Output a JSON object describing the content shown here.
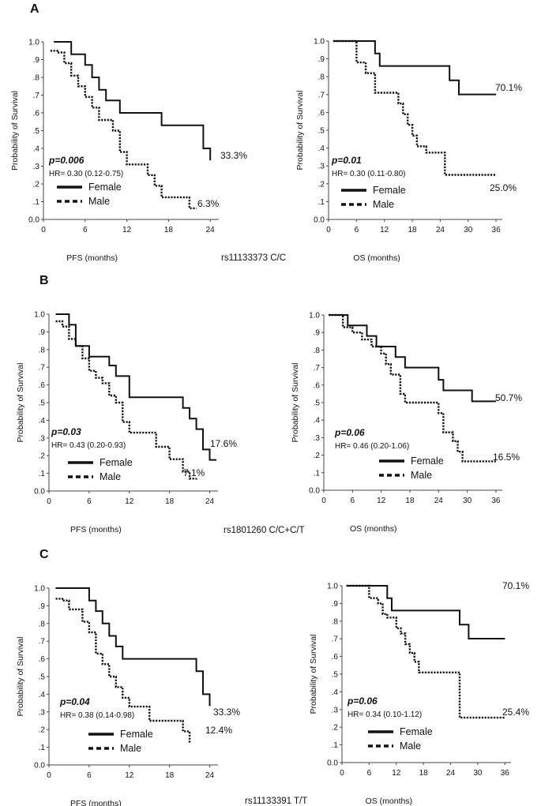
{
  "panels": [
    {
      "letter": "A",
      "genotype": "rs11133373 C/C"
    },
    {
      "letter": "B",
      "genotype": "rs1801260 C/C+C/T"
    },
    {
      "letter": "C",
      "genotype": "rs11133391 T/T"
    }
  ],
  "legend": {
    "female": "Female",
    "male": "Male"
  },
  "chart_data": [
    {
      "id": "A-PFS",
      "type": "line",
      "panel": "A",
      "xlabel": "PFS (months)",
      "ylabel": "Probability of Survival",
      "xticks": [
        "0",
        "6",
        "12",
        "18",
        "24"
      ],
      "xticks_num": [
        0,
        6,
        12,
        18,
        24
      ],
      "yticks": [
        "0.0",
        ".1",
        ".2",
        ".3",
        ".4",
        ".5",
        ".6",
        ".7",
        ".8",
        ".9",
        "1.0"
      ],
      "xlim": [
        0,
        25
      ],
      "ylim": [
        0,
        1
      ],
      "pvalue": "p=0.006",
      "hr": "HR= 0.30 (0.12-0.75)",
      "series": [
        {
          "name": "Female",
          "style": "solid",
          "end_label": "33.3%",
          "x": [
            1.5,
            4,
            6,
            7,
            8,
            9,
            11,
            12,
            17,
            23,
            24
          ],
          "y": [
            1.0,
            0.93,
            0.87,
            0.8,
            0.73,
            0.67,
            0.6,
            0.6,
            0.53,
            0.4,
            0.333
          ]
        },
        {
          "name": "Male",
          "style": "dotted",
          "end_label": "6.3%",
          "x": [
            1,
            2,
            3,
            4,
            5,
            6,
            7,
            8,
            9,
            10,
            11,
            12,
            14,
            15,
            16,
            17,
            20,
            21,
            22
          ],
          "y": [
            0.95,
            0.94,
            0.88,
            0.81,
            0.75,
            0.69,
            0.63,
            0.56,
            0.56,
            0.5,
            0.38,
            0.31,
            0.31,
            0.25,
            0.19,
            0.125,
            0.125,
            0.063,
            0.063
          ]
        }
      ]
    },
    {
      "id": "A-OS",
      "type": "line",
      "panel": "A",
      "xlabel": "OS (months)",
      "ylabel": "Probability of Survival",
      "xticks": [
        "0",
        "6",
        "12",
        "18",
        "24",
        "30",
        "36"
      ],
      "xticks_num": [
        0,
        6,
        12,
        18,
        24,
        30,
        36
      ],
      "yticks": [
        "0.0",
        ".1",
        ".2",
        ".3",
        ".4",
        ".5",
        ".6",
        ".7",
        ".8",
        ".9",
        "1.0"
      ],
      "xlim": [
        0,
        37
      ],
      "ylim": [
        0,
        1
      ],
      "pvalue": "p=0.01",
      "hr": "HR= 0.30 (0.11-0.80)",
      "series": [
        {
          "name": "Female",
          "style": "solid",
          "end_label": "70.1%",
          "x": [
            1,
            10,
            11,
            24,
            26,
            28,
            36
          ],
          "y": [
            1.0,
            0.93,
            0.86,
            0.86,
            0.78,
            0.701,
            0.701
          ]
        },
        {
          "name": "Male",
          "style": "dotted",
          "end_label": "25.0%",
          "x": [
            1,
            6,
            8,
            10,
            14,
            15,
            16,
            17,
            18,
            19,
            21,
            25,
            27,
            36
          ],
          "y": [
            1.0,
            0.88,
            0.82,
            0.71,
            0.71,
            0.65,
            0.59,
            0.53,
            0.47,
            0.41,
            0.375,
            0.25,
            0.25,
            0.25
          ]
        }
      ]
    },
    {
      "id": "B-PFS",
      "type": "line",
      "panel": "B",
      "xlabel": "PFS (months)",
      "ylabel": "Probability of Survival",
      "xticks": [
        "0",
        "6",
        "12",
        "18",
        "24"
      ],
      "xticks_num": [
        0,
        6,
        12,
        18,
        24
      ],
      "yticks": [
        "0.0",
        ".1",
        ".2",
        ".3",
        ".4",
        ".5",
        ".6",
        ".7",
        ".8",
        ".9",
        "1.0"
      ],
      "xlim": [
        0,
        25
      ],
      "ylim": [
        0,
        1
      ],
      "pvalue": "p=0.03",
      "hr": "HR= 0.43 (0.20-0.93)",
      "series": [
        {
          "name": "Female",
          "style": "solid",
          "end_label": "17.6%",
          "x": [
            1,
            3,
            4,
            5,
            6,
            8,
            9,
            10,
            12,
            20,
            21,
            22,
            23,
            24,
            25
          ],
          "y": [
            1.0,
            0.94,
            0.82,
            0.82,
            0.76,
            0.76,
            0.71,
            0.65,
            0.53,
            0.47,
            0.41,
            0.35,
            0.235,
            0.176,
            0.176
          ]
        },
        {
          "name": "Male",
          "style": "dotted",
          "end_label": "7.1%",
          "x": [
            1,
            2,
            3,
            4,
            5,
            6,
            7,
            8,
            9,
            10,
            11,
            12,
            14,
            16,
            18,
            20,
            21,
            22
          ],
          "y": [
            0.96,
            0.93,
            0.86,
            0.82,
            0.75,
            0.68,
            0.64,
            0.61,
            0.54,
            0.5,
            0.39,
            0.33,
            0.33,
            0.25,
            0.18,
            0.11,
            0.07,
            0.071
          ]
        }
      ]
    },
    {
      "id": "B-OS",
      "type": "line",
      "panel": "B",
      "xlabel": "OS (months)",
      "ylabel": "Probability of Survival",
      "xticks": [
        "0",
        "6",
        "12",
        "18",
        "24",
        "30",
        "36"
      ],
      "xticks_num": [
        0,
        6,
        12,
        18,
        24,
        30,
        36
      ],
      "yticks": [
        "0.0",
        ".1",
        ".2",
        ".3",
        ".4",
        ".5",
        ".6",
        ".7",
        ".8",
        ".9",
        "1.0"
      ],
      "xlim": [
        0,
        37
      ],
      "ylim": [
        0,
        1
      ],
      "pvalue": "p=0.06",
      "hr": "HR= 0.46 (0.20-1.06)",
      "series": [
        {
          "name": "Female",
          "style": "solid",
          "end_label": "50.7%",
          "x": [
            1,
            5,
            6,
            9,
            11,
            14,
            15,
            17,
            24,
            25,
            31,
            36
          ],
          "y": [
            1.0,
            0.94,
            0.94,
            0.88,
            0.82,
            0.82,
            0.76,
            0.7,
            0.63,
            0.57,
            0.507,
            0.507
          ]
        },
        {
          "name": "Male",
          "style": "dotted",
          "end_label": "16.5%",
          "x": [
            1,
            4,
            6,
            8,
            10,
            12,
            13,
            14,
            16,
            17,
            24,
            25,
            27,
            28,
            29,
            36
          ],
          "y": [
            1.0,
            0.93,
            0.9,
            0.86,
            0.82,
            0.78,
            0.72,
            0.66,
            0.55,
            0.5,
            0.44,
            0.33,
            0.28,
            0.22,
            0.165,
            0.165
          ]
        }
      ]
    },
    {
      "id": "C-PFS",
      "type": "line",
      "panel": "C",
      "xlabel": "PFS (months)",
      "ylabel": "Probability of Survival",
      "xticks": [
        "0",
        "6",
        "12",
        "18",
        "24"
      ],
      "xticks_num": [
        0,
        6,
        12,
        18,
        24
      ],
      "yticks": [
        "0.0",
        ".1",
        ".2",
        ".3",
        ".4",
        ".5",
        ".6",
        ".7",
        ".8",
        ".9",
        "1.0"
      ],
      "xlim": [
        0,
        25
      ],
      "ylim": [
        0,
        1
      ],
      "pvalue": "p=0.04",
      "hr": "HR= 0.38 (0.14-0.98)",
      "series": [
        {
          "name": "Female",
          "style": "solid",
          "end_label": "33.3%",
          "x": [
            1,
            6,
            7,
            8,
            9,
            10,
            11,
            17,
            22,
            23,
            24
          ],
          "y": [
            1.0,
            0.93,
            0.87,
            0.8,
            0.73,
            0.67,
            0.6,
            0.6,
            0.53,
            0.4,
            0.333
          ]
        },
        {
          "name": "Male",
          "style": "dotted",
          "end_label": "12.4%",
          "x": [
            1,
            2,
            3,
            5,
            6,
            7,
            8,
            9,
            10,
            11,
            12,
            15,
            16,
            17,
            20,
            21
          ],
          "y": [
            0.94,
            0.93,
            0.88,
            0.81,
            0.75,
            0.63,
            0.57,
            0.5,
            0.44,
            0.38,
            0.33,
            0.25,
            0.25,
            0.25,
            0.19,
            0.124
          ]
        }
      ]
    },
    {
      "id": "C-OS",
      "type": "line",
      "panel": "C",
      "xlabel": "OS (months)",
      "ylabel": "Probability of Survival",
      "xticks": [
        "0",
        "6",
        "12",
        "18",
        "24",
        "30",
        "36"
      ],
      "xticks_num": [
        0,
        6,
        12,
        18,
        24,
        30,
        36
      ],
      "yticks": [
        "0.0",
        ".1",
        ".2",
        ".3",
        ".4",
        ".5",
        ".6",
        ".7",
        ".8",
        ".9",
        "1.0"
      ],
      "xlim": [
        0,
        37
      ],
      "ylim": [
        0,
        1
      ],
      "pvalue": "p=0.06",
      "hr": "HR= 0.34 (0.10-1.12)",
      "series": [
        {
          "name": "Female",
          "style": "solid",
          "end_label": "70.1%",
          "x": [
            1,
            10,
            11,
            25,
            26,
            28,
            36
          ],
          "y": [
            1.0,
            0.93,
            0.86,
            0.86,
            0.78,
            0.701,
            0.701
          ]
        },
        {
          "name": "Male",
          "style": "dotted",
          "end_label": "25.4%",
          "x": [
            1,
            6,
            8,
            9,
            10,
            12,
            13,
            14,
            15,
            16,
            17,
            18,
            25,
            26,
            36
          ],
          "y": [
            1.0,
            0.93,
            0.9,
            0.84,
            0.82,
            0.76,
            0.73,
            0.67,
            0.62,
            0.57,
            0.51,
            0.51,
            0.51,
            0.254,
            0.254
          ]
        }
      ]
    }
  ]
}
